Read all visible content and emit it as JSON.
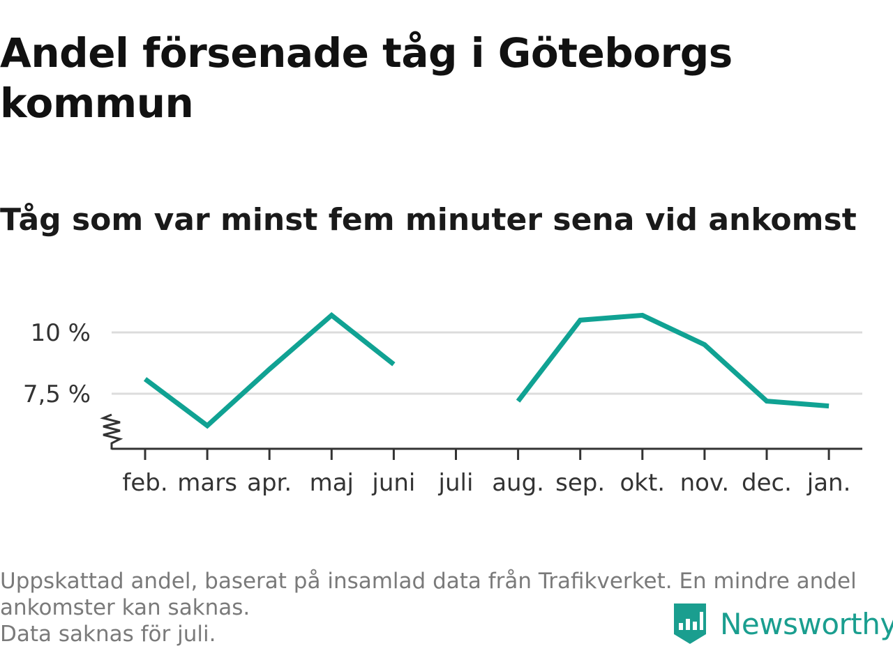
{
  "title": "Andel försenade tåg i Göteborgs kommun",
  "subtitle": "Tåg som var minst fem minuter sena vid ankomst",
  "footer": {
    "note1": "Uppskattad andel, baserat på insamlad data från Trafikverket. En mindre andel ankomster kan saknas.",
    "note2": "Data saknas för juli."
  },
  "brand": {
    "name": "Newsworthy",
    "color": "#1a9e8f",
    "icon": "newsworthy-logo-icon"
  },
  "chart_data": {
    "type": "line",
    "categories": [
      "feb.",
      "mars",
      "apr.",
      "maj",
      "juni",
      "juli",
      "aug.",
      "sep.",
      "okt.",
      "nov.",
      "dec.",
      "jan."
    ],
    "series": [
      {
        "values": [
          8.1,
          6.2,
          8.5,
          10.7,
          8.7,
          null,
          7.2,
          10.5,
          10.7,
          9.5,
          7.2,
          7.0
        ]
      }
    ],
    "yticks": [
      {
        "value": 7.5,
        "label": "7,5 %"
      },
      {
        "value": 10,
        "label": "10 %"
      }
    ],
    "ylim": [
      5.0,
      11.7
    ],
    "y_axis_break": true,
    "grid": "horizontal",
    "line_color": "#10a293",
    "grid_color": "#dcdcdc",
    "axis_color": "#333333"
  }
}
